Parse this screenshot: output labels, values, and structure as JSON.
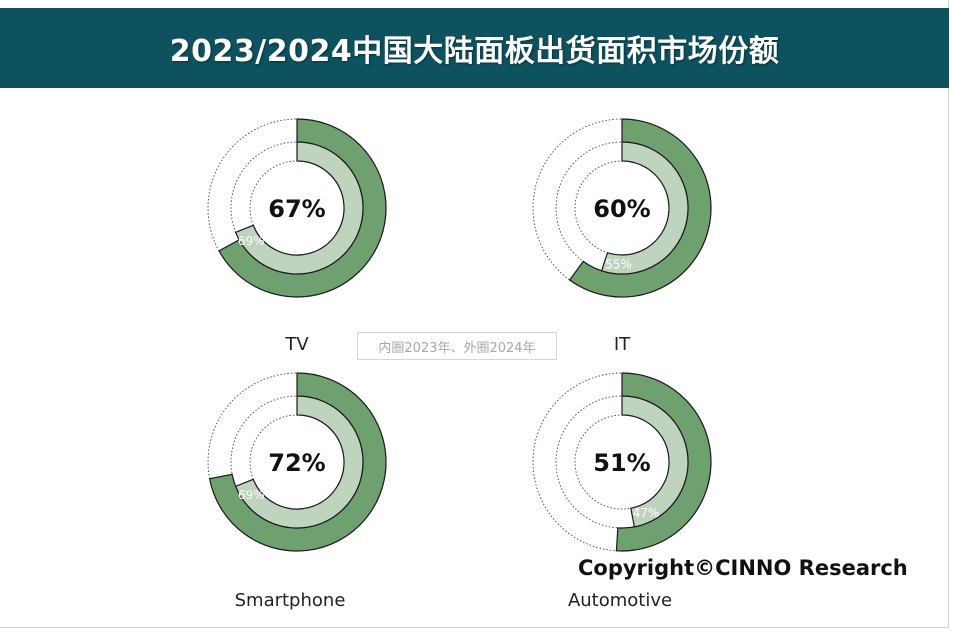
{
  "title": "2023/2024中国大陆面板出货面积市场份额",
  "legend_note": "内圈2023年、外圈2024年",
  "copyright": "Copyright©CINNO Research",
  "colors": {
    "header_bg": "#0e5260",
    "outer_fill": "#6fa06f",
    "inner_fill": "#bfd4bf",
    "ring_stroke": "#1a1a1a"
  },
  "chart_data": [
    {
      "type": "pie",
      "category": "TV",
      "series": [
        {
          "name": "2024年",
          "ring": "outer",
          "value": 67,
          "label": "67%"
        },
        {
          "name": "2023年",
          "ring": "inner",
          "value": 69,
          "label": "69%"
        }
      ]
    },
    {
      "type": "pie",
      "category": "IT",
      "series": [
        {
          "name": "2024年",
          "ring": "outer",
          "value": 60,
          "label": "60%"
        },
        {
          "name": "2023年",
          "ring": "inner",
          "value": 55,
          "label": "55%"
        }
      ]
    },
    {
      "type": "pie",
      "category": "Smartphone",
      "series": [
        {
          "name": "2024年",
          "ring": "outer",
          "value": 72,
          "label": "72%"
        },
        {
          "name": "2023年",
          "ring": "inner",
          "value": 69,
          "label": "69%"
        }
      ]
    },
    {
      "type": "pie",
      "category": "Automotive",
      "series": [
        {
          "name": "2024年",
          "ring": "outer",
          "value": 51,
          "label": "51%"
        },
        {
          "name": "2023年",
          "ring": "inner",
          "value": 47,
          "label": "47%"
        }
      ]
    }
  ]
}
